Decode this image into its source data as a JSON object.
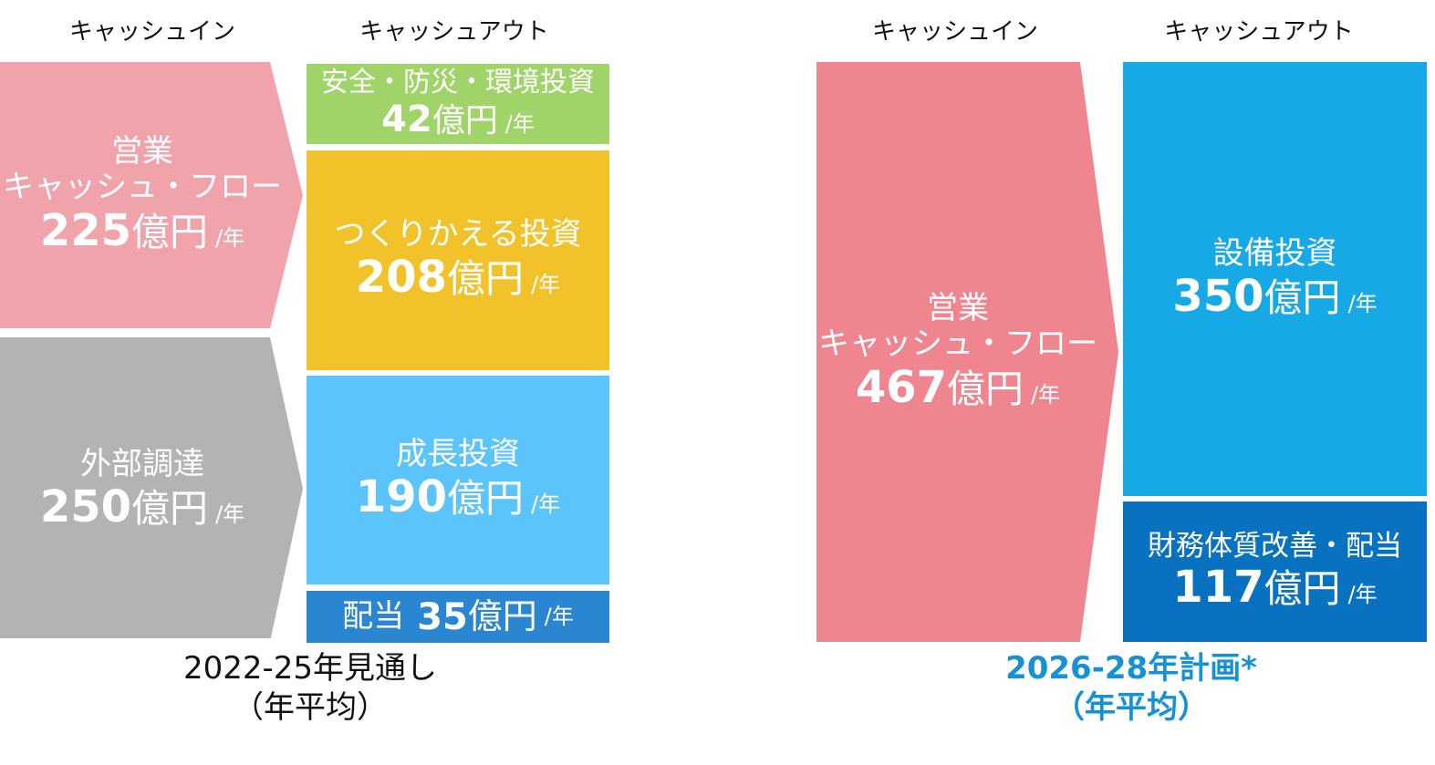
{
  "left": {
    "headers": {
      "in": "キャッシュイン",
      "out": "キャッシュアウト"
    },
    "in": [
      {
        "label_line1": "営業",
        "label_line2": "キャッシュ・フロー",
        "value": "225",
        "unit": "億円",
        "per": "/年",
        "color": "#f0a3ab"
      },
      {
        "label_line1": "外部調達",
        "value": "250",
        "unit": "億円",
        "per": "/年",
        "color": "#b3b3b3"
      }
    ],
    "out": [
      {
        "label": "安全・防災・環境投資",
        "value": "42",
        "unit": "億円",
        "per": "/年",
        "color": "#a0d468"
      },
      {
        "label": "つくりかえる投資",
        "value": "208",
        "unit": "億円",
        "per": "/年",
        "color": "#f2c22a"
      },
      {
        "label": "成長投資",
        "value": "190",
        "unit": "億円",
        "per": "/年",
        "color": "#5bc5fb"
      },
      {
        "label": "配当",
        "value": "35",
        "unit": "億円",
        "per": "/年",
        "color": "#2b86d1"
      }
    ],
    "caption_line1": "2022-25年見通し",
    "caption_line2": "（年平均）"
  },
  "right": {
    "headers": {
      "in": "キャッシュイン",
      "out": "キャッシュアウト"
    },
    "in": {
      "label_line1": "営業",
      "label_line2": "キャッシュ・フロー",
      "value": "467",
      "unit": "億円",
      "per": "/年",
      "color": "#ee858f"
    },
    "out": [
      {
        "label": "設備投資",
        "value": "350",
        "unit": "億円",
        "per": "/年",
        "color": "#17a9e6"
      },
      {
        "label": "財務体質改善・配当",
        "value": "117",
        "unit": "億円",
        "per": "/年",
        "color": "#0872c0"
      }
    ],
    "caption_line1": "2026-28年計画*",
    "caption_line2": "（年平均）",
    "caption_color": "#1592d4"
  }
}
